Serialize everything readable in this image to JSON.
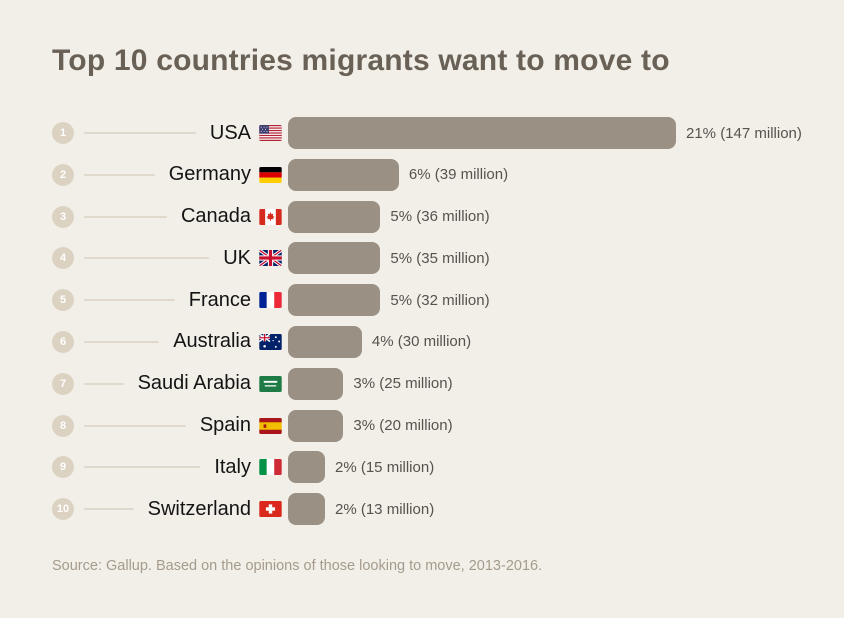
{
  "title": "Top 10 countries migrants want to move to",
  "source": "Source: Gallup. Based on the opinions of those looking to move, 2013-2016.",
  "colors": {
    "background": "#F2EFE9",
    "bar": "#9A9083",
    "badge": "#DBD2C2",
    "badge_text": "#FFFFFF",
    "leader": "#DFD8CB",
    "title_text": "#6A6156",
    "country_text": "#141414",
    "value_text": "#55534C",
    "source_text": "#A49B8C"
  },
  "chart_data": {
    "type": "bar",
    "orientation": "horizontal",
    "title": "Top 10 countries migrants want to move to",
    "categories": [
      "USA",
      "Germany",
      "Canada",
      "UK",
      "France",
      "Australia",
      "Saudi Arabia",
      "Spain",
      "Italy",
      "Switzerland"
    ],
    "ranks": [
      1,
      2,
      3,
      4,
      5,
      6,
      7,
      8,
      9,
      10
    ],
    "values_percent": [
      21,
      6,
      5,
      5,
      5,
      4,
      3,
      3,
      2,
      2
    ],
    "values_millions": [
      147,
      39,
      36,
      35,
      32,
      30,
      25,
      20,
      15,
      13
    ],
    "labels": [
      "21% (147 million)",
      "6% (39 million)",
      "5% (36 million)",
      "5% (35 million)",
      "5% (32 million)",
      "4% (30 million)",
      "3% (25 million)",
      "3% (20 million)",
      "2% (15 million)",
      "2% (13 million)"
    ],
    "flags": [
      "us",
      "de",
      "ca",
      "gb",
      "fr",
      "au",
      "sa",
      "es",
      "it",
      "ch"
    ],
    "xlim": [
      0,
      21
    ],
    "grid": false,
    "legend": false
  }
}
